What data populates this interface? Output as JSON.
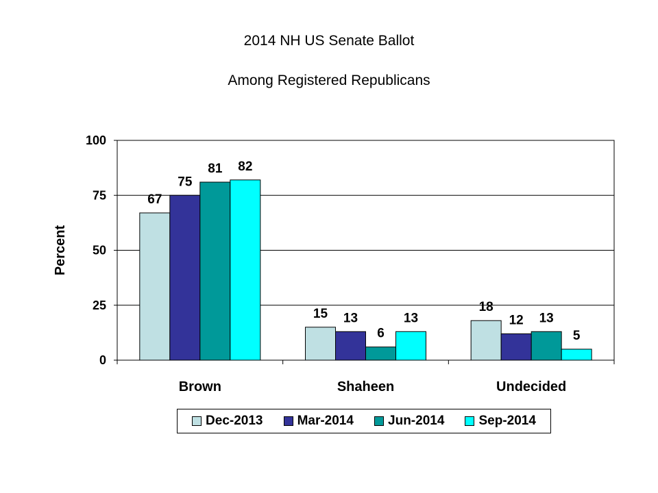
{
  "chart_data": {
    "type": "bar",
    "title": "2014 NH US Senate Ballot",
    "subtitle": "Among Registered Republicans",
    "ylabel": "Percent",
    "xlabel": "",
    "ylim": [
      0,
      100
    ],
    "yticks": [
      0,
      25,
      50,
      75,
      100
    ],
    "grid": true,
    "legend_position": "bottom",
    "categories": [
      "Brown",
      "Shaheen",
      "Undecided"
    ],
    "series": [
      {
        "name": "Dec-2013",
        "color": "#BFE0E3",
        "values": [
          67,
          15,
          18
        ]
      },
      {
        "name": "Mar-2014",
        "color": "#333399",
        "values": [
          75,
          13,
          12
        ]
      },
      {
        "name": "Jun-2014",
        "color": "#009999",
        "values": [
          81,
          6,
          13
        ]
      },
      {
        "name": "Sep-2014",
        "color": "#00FFFF",
        "values": [
          82,
          13,
          5
        ]
      }
    ]
  }
}
